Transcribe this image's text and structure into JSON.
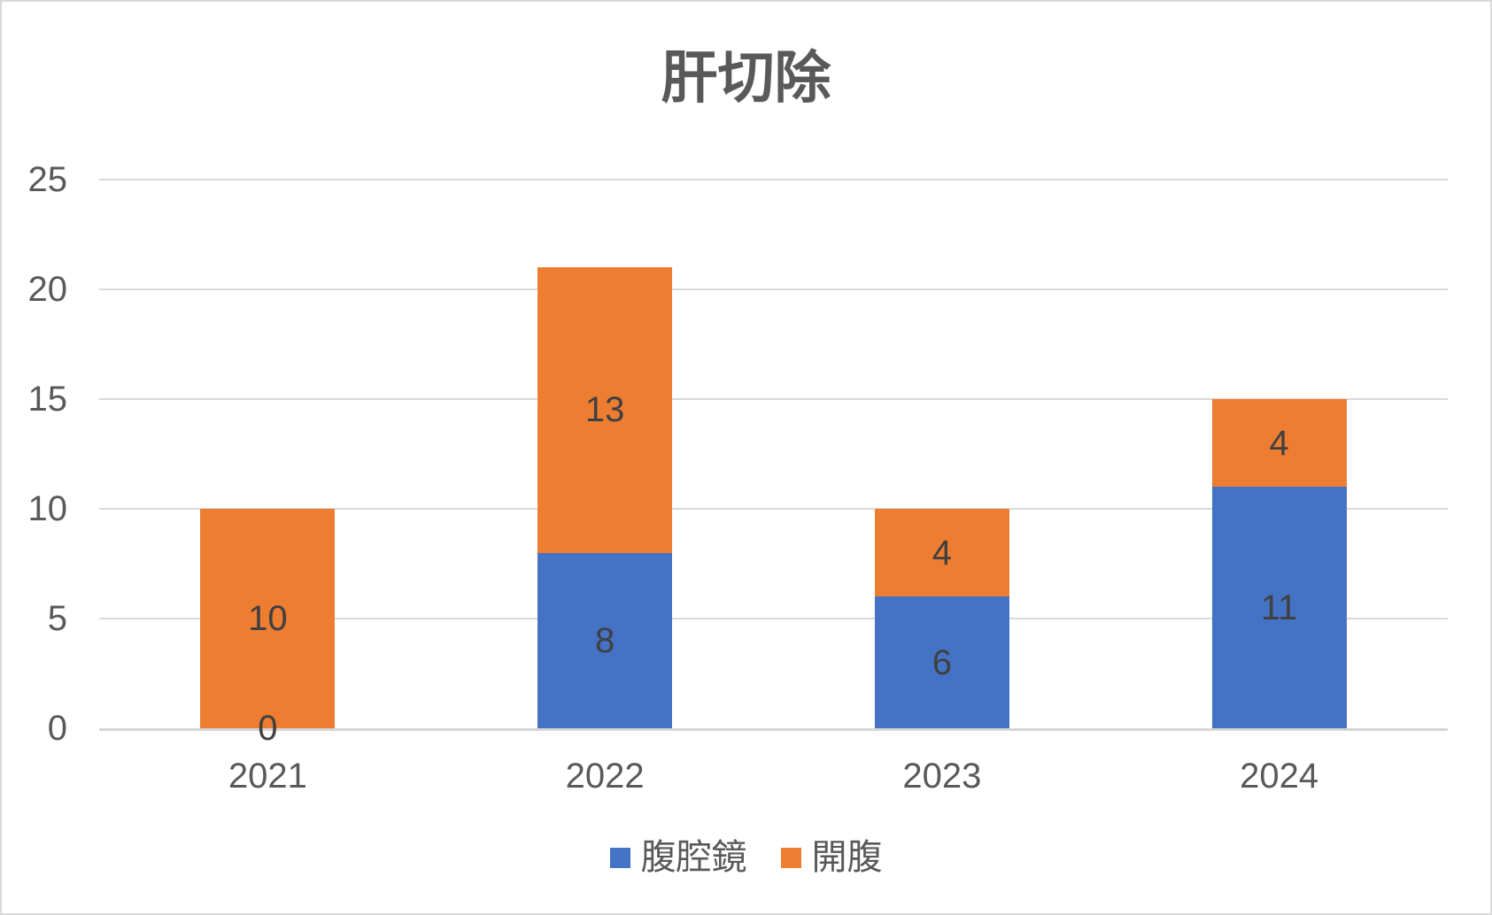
{
  "chart": {
    "title": "肝切除"
  },
  "chart_data": {
    "type": "bar",
    "stacked": true,
    "title": "肝切除",
    "categories": [
      "2021",
      "2022",
      "2023",
      "2024"
    ],
    "series": [
      {
        "name": "腹腔鏡",
        "color": "#4472C4",
        "values": [
          0,
          8,
          6,
          11
        ]
      },
      {
        "name": "開腹",
        "color": "#ED7D31",
        "values": [
          10,
          13,
          4,
          4
        ]
      }
    ],
    "totals": [
      10,
      21,
      10,
      15
    ],
    "xlabel": "",
    "ylabel": "",
    "ylim": [
      0,
      25
    ],
    "yticks": [
      0,
      5,
      10,
      15,
      20,
      25
    ],
    "grid": true,
    "legend_position": "bottom",
    "data_labels": true,
    "colors": {
      "title_text": "#595959",
      "axis_text": "#595959",
      "data_label_text": "#404040",
      "gridline": "#d9d9d9",
      "axis_line": "#d6d6d6",
      "frame_border": "#d9d9d9",
      "background": "#ffffff"
    }
  }
}
